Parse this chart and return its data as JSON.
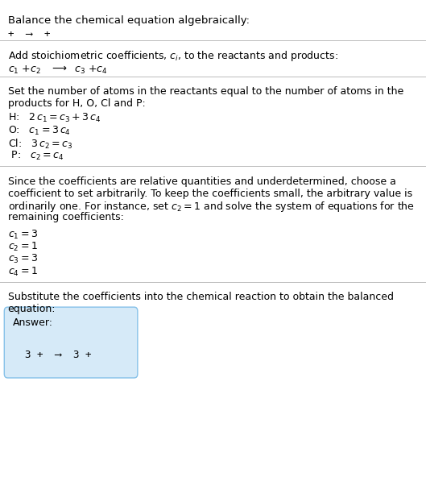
{
  "title": "Balance the chemical equation algebraically:",
  "line1": "+  ⟶  +",
  "section2_header": "Add stoichiometric coefficients, $c_i$, to the reactants and products:",
  "section3_header1": "Set the number of atoms in the reactants equal to the number of atoms in the",
  "section3_header2": "products for H, O, Cl and P:",
  "section4_header": [
    "Since the coefficients are relative quantities and underdetermined, choose a",
    "coefficient to set arbitrarily. To keep the coefficients small, the arbitrary value is",
    "ordinarily one. For instance, set $c_2 = 1$ and solve the system of equations for the",
    "remaining coefficients:"
  ],
  "section5_header1": "Substitute the coefficients into the chemical reaction to obtain the balanced",
  "section5_header2": "equation:",
  "answer_label": "Answer:",
  "answer_eq": "3 +  ⟶  3 +",
  "bg_color": "#ffffff",
  "box_bg_color": "#d6eaf8",
  "box_edge_color": "#85c1e9",
  "text_color": "#000000",
  "divider_color": "#bbbbbb",
  "fs_title": 9.5,
  "fs_body": 9.0,
  "fs_math": 9.0,
  "fs_answer": 9.0
}
